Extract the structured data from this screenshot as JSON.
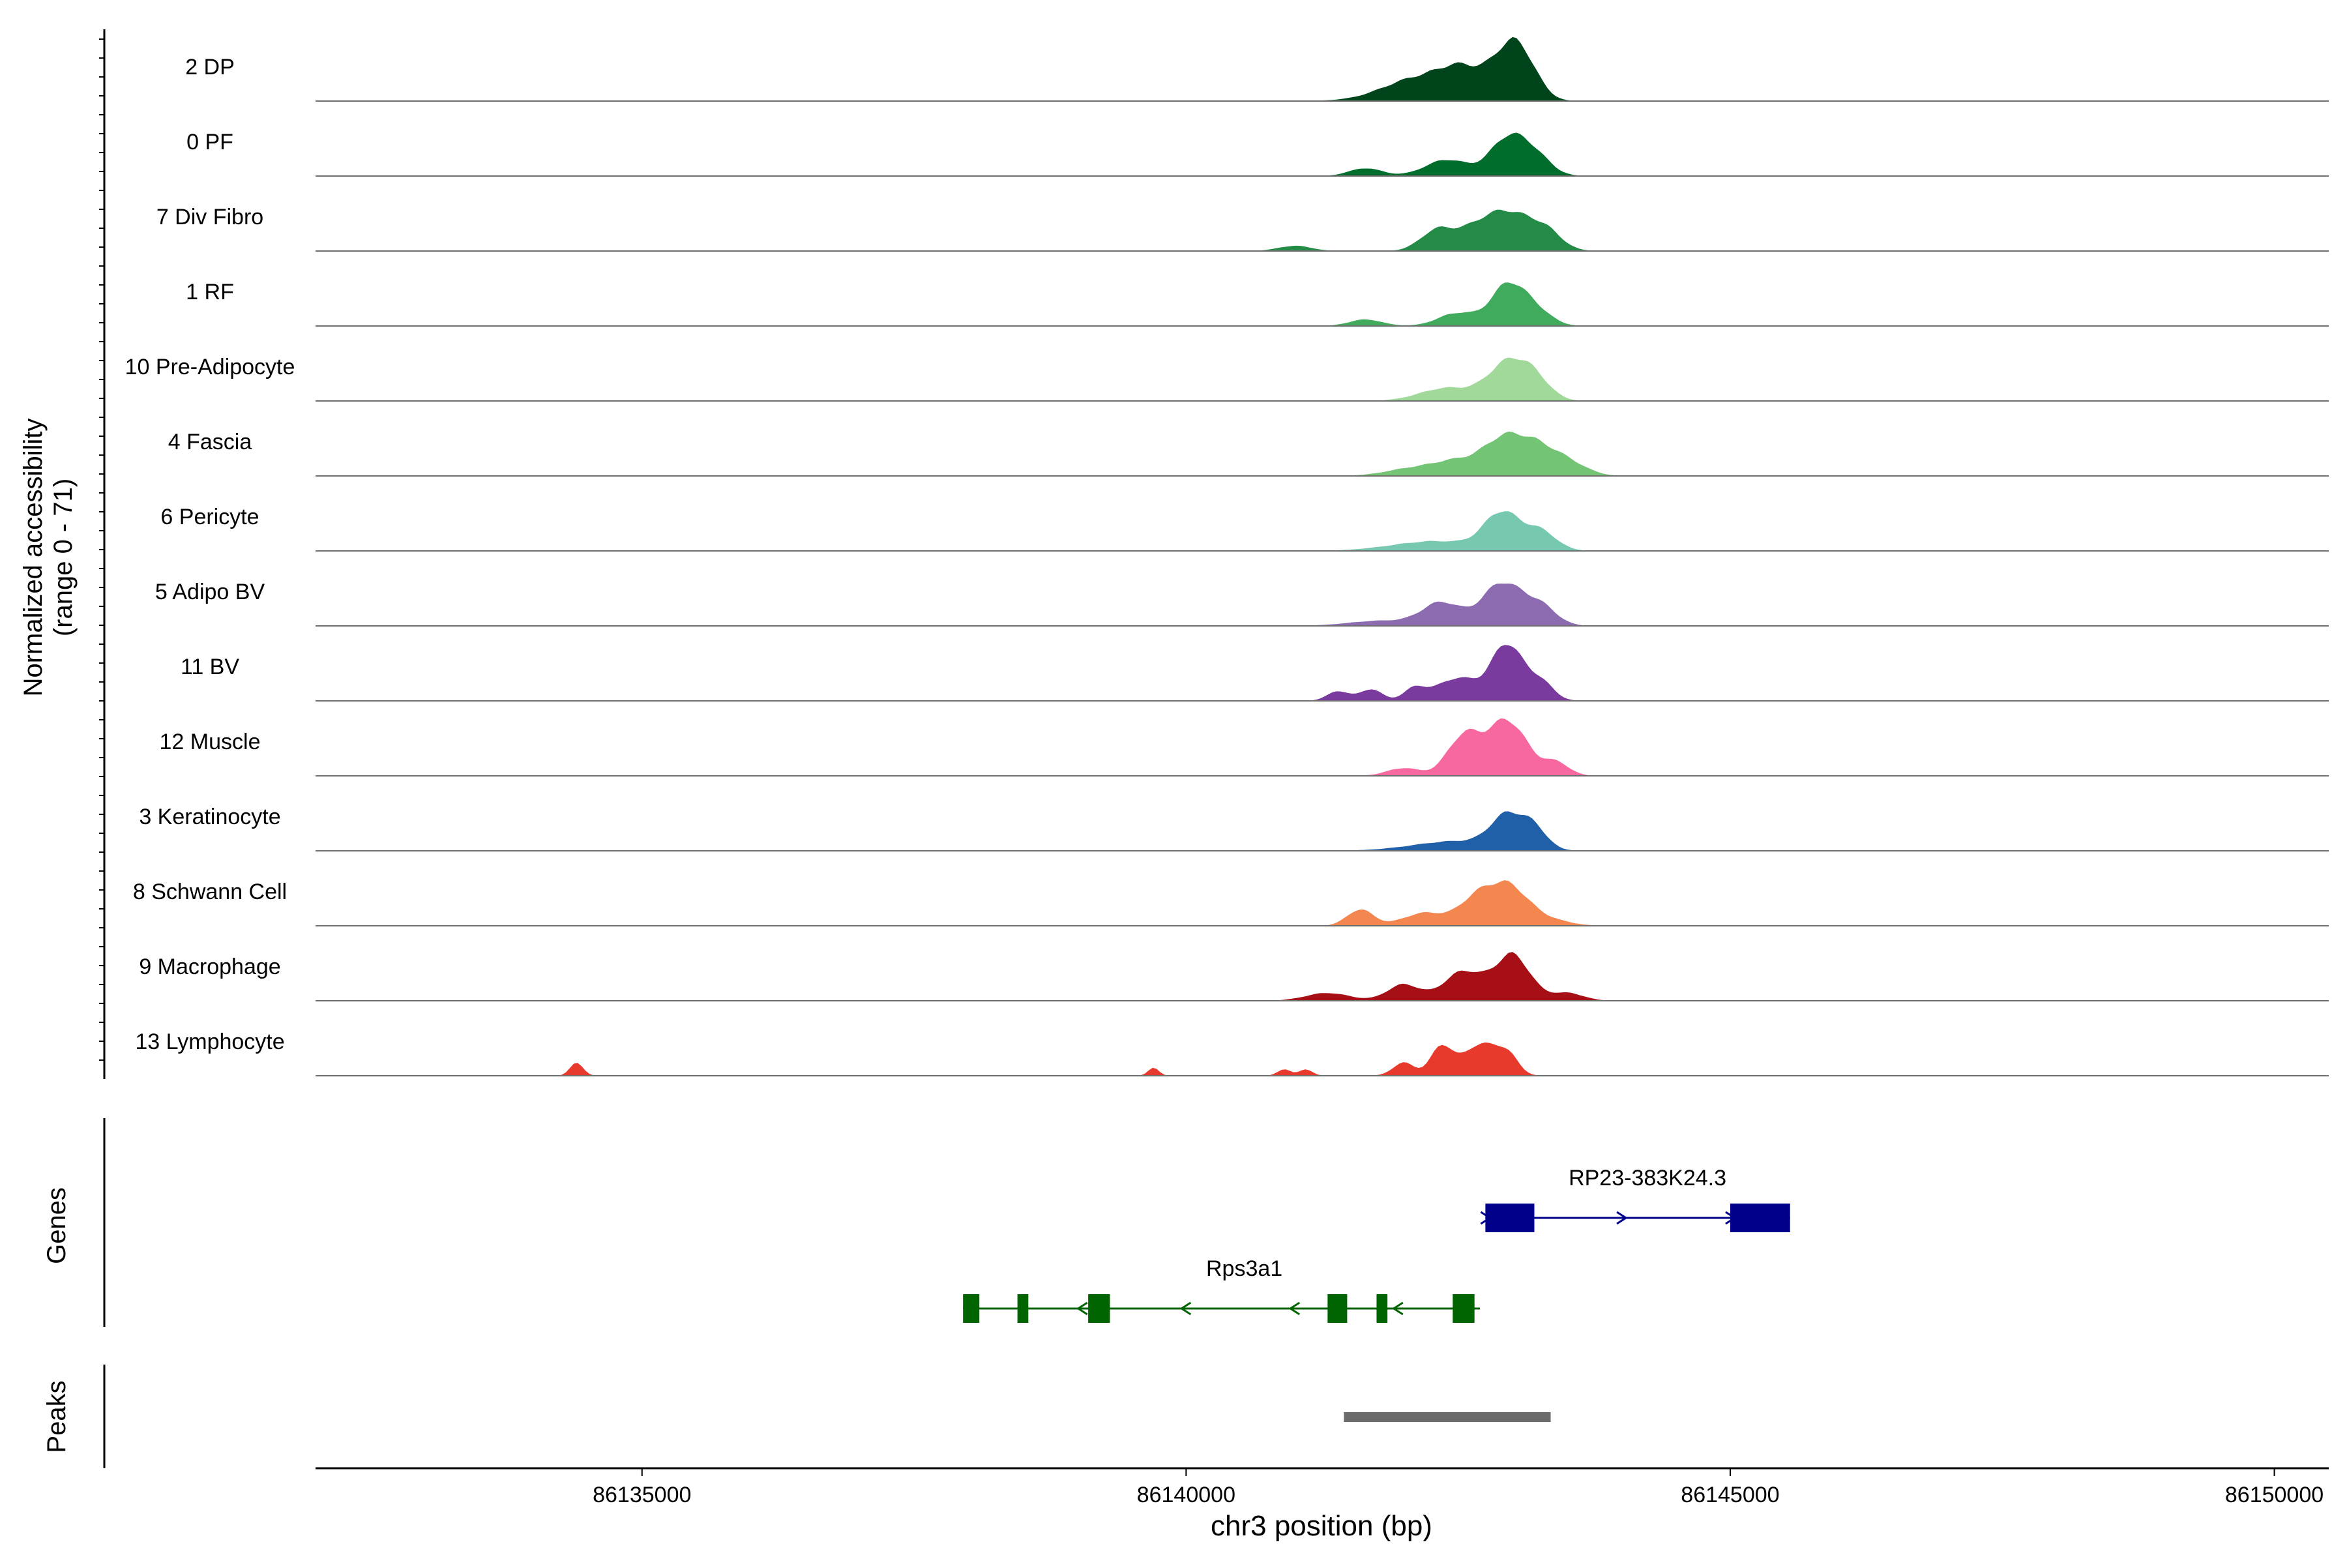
{
  "chart_data": {
    "type": "area",
    "title": "",
    "xlabel": "chr3 position (bp)",
    "ylabel_line1": "Normalized accessibility",
    "ylabel_line2": "(range 0 - 71)",
    "xlim": [
      86132000,
      86150500
    ],
    "ylim": [
      0,
      71
    ],
    "xticks": [
      86135000,
      86140000,
      86145000,
      86150000
    ],
    "xtick_labels": [
      "86135000",
      "86140000",
      "86145000",
      "86150000"
    ],
    "series": [
      {
        "name": "2 DP",
        "color": "#00441b",
        "peaks": [
          [
            86142100,
            0.22,
            300
          ],
          [
            86142550,
            0.35,
            200
          ],
          [
            86142950,
            0.55,
            160
          ],
          [
            86143100,
            0.45,
            150
          ],
          [
            86142300,
            0.15,
            400
          ]
        ]
      },
      {
        "name": "0 PF",
        "color": "#006d2c",
        "peaks": [
          [
            86141650,
            0.12,
            150
          ],
          [
            86142400,
            0.25,
            200
          ],
          [
            86142950,
            0.55,
            160
          ],
          [
            86143200,
            0.3,
            150
          ]
        ]
      },
      {
        "name": "7 Div Fibro",
        "color": "#238b45",
        "peaks": [
          [
            86141000,
            0.08,
            150
          ],
          [
            86142300,
            0.3,
            150
          ],
          [
            86142700,
            0.38,
            200
          ],
          [
            86143000,
            0.45,
            180
          ],
          [
            86143300,
            0.3,
            150
          ]
        ]
      },
      {
        "name": "1 RF",
        "color": "#41ab5d",
        "peaks": [
          [
            86141650,
            0.1,
            150
          ],
          [
            86142500,
            0.2,
            180
          ],
          [
            86142950,
            0.6,
            150
          ],
          [
            86143200,
            0.25,
            150
          ]
        ]
      },
      {
        "name": "10 Pre-Adipocyte",
        "color": "#a1d99b",
        "peaks": [
          [
            86142400,
            0.2,
            250
          ],
          [
            86142950,
            0.55,
            180
          ],
          [
            86143200,
            0.3,
            150
          ]
        ]
      },
      {
        "name": "4 Fascia",
        "color": "#74c476",
        "peaks": [
          [
            86142100,
            0.12,
            250
          ],
          [
            86142500,
            0.2,
            200
          ],
          [
            86142900,
            0.5,
            180
          ],
          [
            86143200,
            0.4,
            180
          ],
          [
            86143500,
            0.2,
            180
          ]
        ]
      },
      {
        "name": "6 Pericyte",
        "color": "#76c8b0",
        "peaks": [
          [
            86142300,
            0.15,
            400
          ],
          [
            86142900,
            0.55,
            160
          ],
          [
            86143250,
            0.3,
            150
          ]
        ]
      },
      {
        "name": "5 Adipo BV",
        "color": "#8c6bb1",
        "peaks": [
          [
            86141800,
            0.08,
            300
          ],
          [
            86142350,
            0.35,
            180
          ],
          [
            86142900,
            0.65,
            180
          ],
          [
            86143250,
            0.3,
            150
          ]
        ]
      },
      {
        "name": "11 BV",
        "color": "#7a3a9e",
        "peaks": [
          [
            86141400,
            0.15,
            100
          ],
          [
            86141700,
            0.18,
            100
          ],
          [
            86142100,
            0.18,
            100
          ],
          [
            86142500,
            0.35,
            200
          ],
          [
            86142950,
            0.85,
            140
          ],
          [
            86143250,
            0.3,
            120
          ]
        ]
      },
      {
        "name": "12 Muscle",
        "color": "#f768a1",
        "peaks": [
          [
            86142000,
            0.12,
            150
          ],
          [
            86142550,
            0.6,
            150
          ],
          [
            86142950,
            0.85,
            180
          ],
          [
            86143400,
            0.2,
            120
          ]
        ]
      },
      {
        "name": "3 Keratinocyte",
        "color": "#2060a8",
        "peaks": [
          [
            86142500,
            0.15,
            400
          ],
          [
            86142950,
            0.48,
            150
          ],
          [
            86143200,
            0.3,
            120
          ]
        ]
      },
      {
        "name": "8 Schwann Cell",
        "color": "#f4874f",
        "peaks": [
          [
            86141600,
            0.25,
            120
          ],
          [
            86142200,
            0.2,
            200
          ],
          [
            86142650,
            0.35,
            150
          ],
          [
            86142950,
            0.6,
            180
          ],
          [
            86143300,
            0.1,
            200
          ]
        ]
      },
      {
        "name": "9 Macrophage",
        "color": "#a50f15",
        "peaks": [
          [
            86141300,
            0.12,
            200
          ],
          [
            86142000,
            0.25,
            150
          ],
          [
            86142550,
            0.45,
            180
          ],
          [
            86143000,
            0.7,
            160
          ],
          [
            86143500,
            0.12,
            150
          ]
        ]
      },
      {
        "name": "13 Lymphocyte",
        "color": "#e83a2c",
        "peaks": [
          [
            86134400,
            0.2,
            60
          ],
          [
            86139700,
            0.12,
            50
          ],
          [
            86140900,
            0.1,
            60
          ],
          [
            86141100,
            0.1,
            60
          ],
          [
            86142000,
            0.2,
            100
          ],
          [
            86142350,
            0.45,
            100
          ],
          [
            86142700,
            0.48,
            150
          ],
          [
            86142950,
            0.3,
            100
          ]
        ]
      }
    ],
    "genes": [
      {
        "name": "RP23-383K24.3",
        "strand": "+",
        "color": "#00008b",
        "start": 86142750,
        "end": 86145550,
        "exons": [
          [
            86142750,
            86143200
          ],
          [
            86145000,
            86145550
          ]
        ],
        "arrows": [
          86142750,
          86144000,
          86145000
        ]
      },
      {
        "name": "Rps3a1",
        "strand": "-",
        "color": "#006400",
        "start": 86137950,
        "end": 86142700,
        "exons": [
          [
            86137950,
            86138100
          ],
          [
            86138450,
            86138550
          ],
          [
            86139100,
            86139300
          ],
          [
            86141300,
            86141480
          ],
          [
            86141750,
            86141850
          ],
          [
            86142450,
            86142650
          ]
        ],
        "arrows": [
          86139050,
          86140000,
          86141000,
          86141950
        ]
      }
    ],
    "peaks": [
      {
        "start": 86141450,
        "end": 86143350
      }
    ],
    "track_labels": {
      "genes": "Genes",
      "peaks": "Peaks"
    }
  }
}
